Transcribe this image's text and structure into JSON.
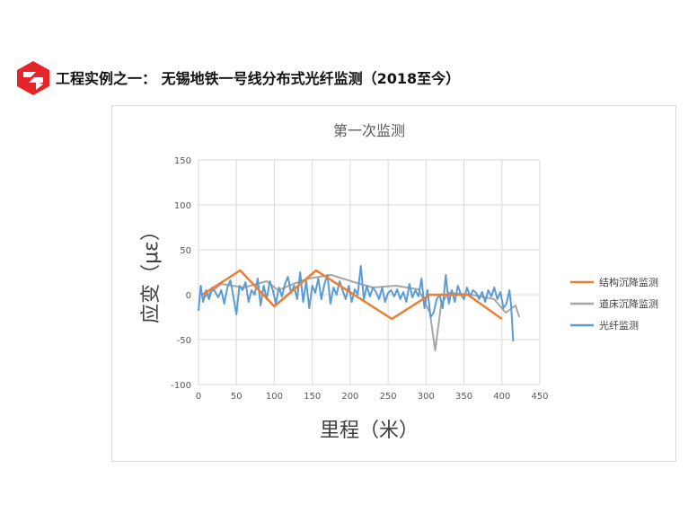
{
  "header": {
    "title": "工程实例之一： 无锡地铁一号线分布式光纤监测（2018至今）",
    "logo_color": "#e4252a"
  },
  "chart_data": {
    "type": "line",
    "title": "第一次监测",
    "xlabel": "里程（米）",
    "ylabel": "应变（με）",
    "xlim": [
      0,
      450
    ],
    "ylim": [
      -100,
      150
    ],
    "x_ticks": [
      "0",
      "50",
      "100",
      "150",
      "200",
      "250",
      "300",
      "350",
      "400",
      "450"
    ],
    "y_ticks": [
      "150",
      "100",
      "50",
      "0",
      "-50",
      "-100"
    ],
    "grid": true,
    "legend_position": "right",
    "series": [
      {
        "name": "结构沉降监测",
        "color": "#ed7d31",
        "points": [
          [
            5,
            0
          ],
          [
            55,
            27
          ],
          [
            100,
            -13
          ],
          [
            155,
            27
          ],
          [
            255,
            -27
          ],
          [
            305,
            0
          ],
          [
            355,
            0
          ],
          [
            400,
            -27
          ]
        ]
      },
      {
        "name": "道床沉降监测",
        "color": "#a5a5a5",
        "points": [
          [
            5,
            -5
          ],
          [
            30,
            12
          ],
          [
            60,
            8
          ],
          [
            90,
            15
          ],
          [
            105,
            5
          ],
          [
            125,
            12
          ],
          [
            145,
            18
          ],
          [
            175,
            22
          ],
          [
            205,
            14
          ],
          [
            230,
            8
          ],
          [
            260,
            10
          ],
          [
            290,
            6
          ],
          [
            305,
            -20
          ],
          [
            312,
            -62
          ],
          [
            320,
            -10
          ],
          [
            330,
            2
          ],
          [
            360,
            0
          ],
          [
            390,
            -5
          ],
          [
            405,
            -20
          ],
          [
            418,
            -12
          ],
          [
            423,
            -25
          ]
        ]
      },
      {
        "name": "光纤监测",
        "color": "#5b9bd5",
        "points": [
          [
            0,
            -18
          ],
          [
            3,
            10
          ],
          [
            6,
            -8
          ],
          [
            10,
            5
          ],
          [
            14,
            -5
          ],
          [
            18,
            8
          ],
          [
            22,
            3
          ],
          [
            26,
            -3
          ],
          [
            30,
            5
          ],
          [
            34,
            -10
          ],
          [
            38,
            8
          ],
          [
            42,
            16
          ],
          [
            46,
            -2
          ],
          [
            50,
            -22
          ],
          [
            54,
            10
          ],
          [
            58,
            5
          ],
          [
            62,
            14
          ],
          [
            66,
            -8
          ],
          [
            70,
            5
          ],
          [
            74,
            0
          ],
          [
            78,
            18
          ],
          [
            82,
            -12
          ],
          [
            86,
            10
          ],
          [
            90,
            -5
          ],
          [
            94,
            15
          ],
          [
            98,
            5
          ],
          [
            102,
            -10
          ],
          [
            106,
            8
          ],
          [
            110,
            -2
          ],
          [
            114,
            12
          ],
          [
            118,
            20
          ],
          [
            122,
            2
          ],
          [
            126,
            10
          ],
          [
            130,
            -5
          ],
          [
            134,
            25
          ],
          [
            138,
            -8
          ],
          [
            142,
            15
          ],
          [
            146,
            -15
          ],
          [
            150,
            10
          ],
          [
            154,
            2
          ],
          [
            158,
            18
          ],
          [
            162,
            -5
          ],
          [
            166,
            12
          ],
          [
            170,
            22
          ],
          [
            174,
            -10
          ],
          [
            178,
            8
          ],
          [
            182,
            0
          ],
          [
            186,
            15
          ],
          [
            190,
            5
          ],
          [
            194,
            -5
          ],
          [
            198,
            10
          ],
          [
            202,
            -8
          ],
          [
            206,
            6
          ],
          [
            210,
            0
          ],
          [
            214,
            32
          ],
          [
            218,
            -5
          ],
          [
            222,
            10
          ],
          [
            226,
            -2
          ],
          [
            230,
            8
          ],
          [
            234,
            3
          ],
          [
            238,
            -5
          ],
          [
            242,
            8
          ],
          [
            246,
            -8
          ],
          [
            250,
            2
          ],
          [
            254,
            5
          ],
          [
            258,
            -2
          ],
          [
            262,
            6
          ],
          [
            266,
            -5
          ],
          [
            270,
            3
          ],
          [
            274,
            -8
          ],
          [
            278,
            12
          ],
          [
            282,
            -3
          ],
          [
            286,
            5
          ],
          [
            290,
            -2
          ],
          [
            294,
            18
          ],
          [
            298,
            -15
          ],
          [
            302,
            5
          ],
          [
            306,
            -25
          ],
          [
            310,
            -20
          ],
          [
            314,
            -5
          ],
          [
            318,
            0
          ],
          [
            322,
            -15
          ],
          [
            326,
            22
          ],
          [
            330,
            -10
          ],
          [
            334,
            5
          ],
          [
            338,
            -8
          ],
          [
            342,
            10
          ],
          [
            346,
            0
          ],
          [
            350,
            -5
          ],
          [
            354,
            8
          ],
          [
            358,
            -2
          ],
          [
            362,
            5
          ],
          [
            366,
            2
          ],
          [
            370,
            -5
          ],
          [
            374,
            3
          ],
          [
            378,
            -8
          ],
          [
            382,
            5
          ],
          [
            386,
            -2
          ],
          [
            390,
            8
          ],
          [
            394,
            -5
          ],
          [
            398,
            3
          ],
          [
            402,
            -15
          ],
          [
            406,
            -10
          ],
          [
            410,
            5
          ],
          [
            412,
            -10
          ],
          [
            415,
            -52
          ]
        ]
      }
    ]
  }
}
